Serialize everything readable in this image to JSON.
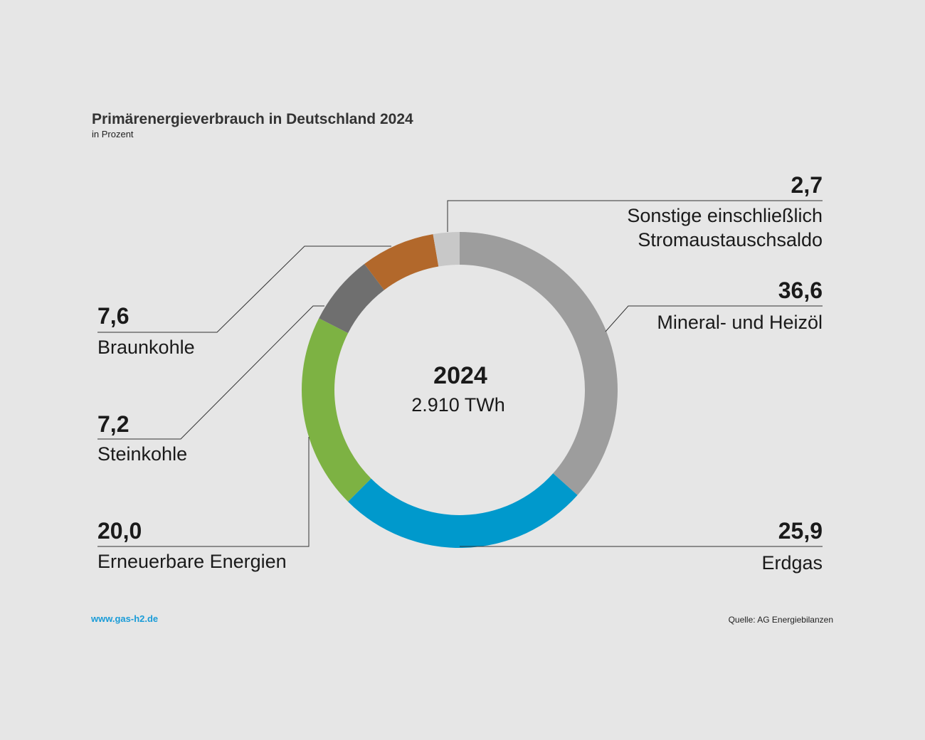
{
  "chart_data": {
    "type": "pie",
    "title": "Primärenergieverbrauch in Deutschland 2024",
    "subtitle": "in Prozent",
    "center": {
      "year": "2024",
      "total": "2.910 TWh"
    },
    "slices": [
      {
        "key": "sonstige",
        "value": 2.7,
        "display": "2,7",
        "label_lines": [
          "Sonstige einschließlich",
          "Stromaustauschsaldo"
        ],
        "color": "#c8c8c8"
      },
      {
        "key": "mineraloel",
        "value": 36.6,
        "display": "36,6",
        "label_lines": [
          "Mineral- und Heizöl"
        ],
        "color": "#9d9d9d"
      },
      {
        "key": "erdgas",
        "value": 25.9,
        "display": "25,9",
        "label_lines": [
          "Erdgas"
        ],
        "color": "#0099cc"
      },
      {
        "key": "erneuerbare",
        "value": 20.0,
        "display": "20,0",
        "label_lines": [
          "Erneuerbare Energien"
        ],
        "color": "#7db243"
      },
      {
        "key": "steinkohle",
        "value": 7.2,
        "display": "7,2",
        "label_lines": [
          "Steinkohle"
        ],
        "color": "#6f6f6f"
      },
      {
        "key": "braunkohle",
        "value": 7.6,
        "display": "7,6",
        "label_lines": [
          "Braunkohle"
        ],
        "color": "#b2682b"
      }
    ]
  },
  "footer": {
    "website": "www.gas-h2.de",
    "source": "Quelle: AG Energiebilanzen"
  }
}
